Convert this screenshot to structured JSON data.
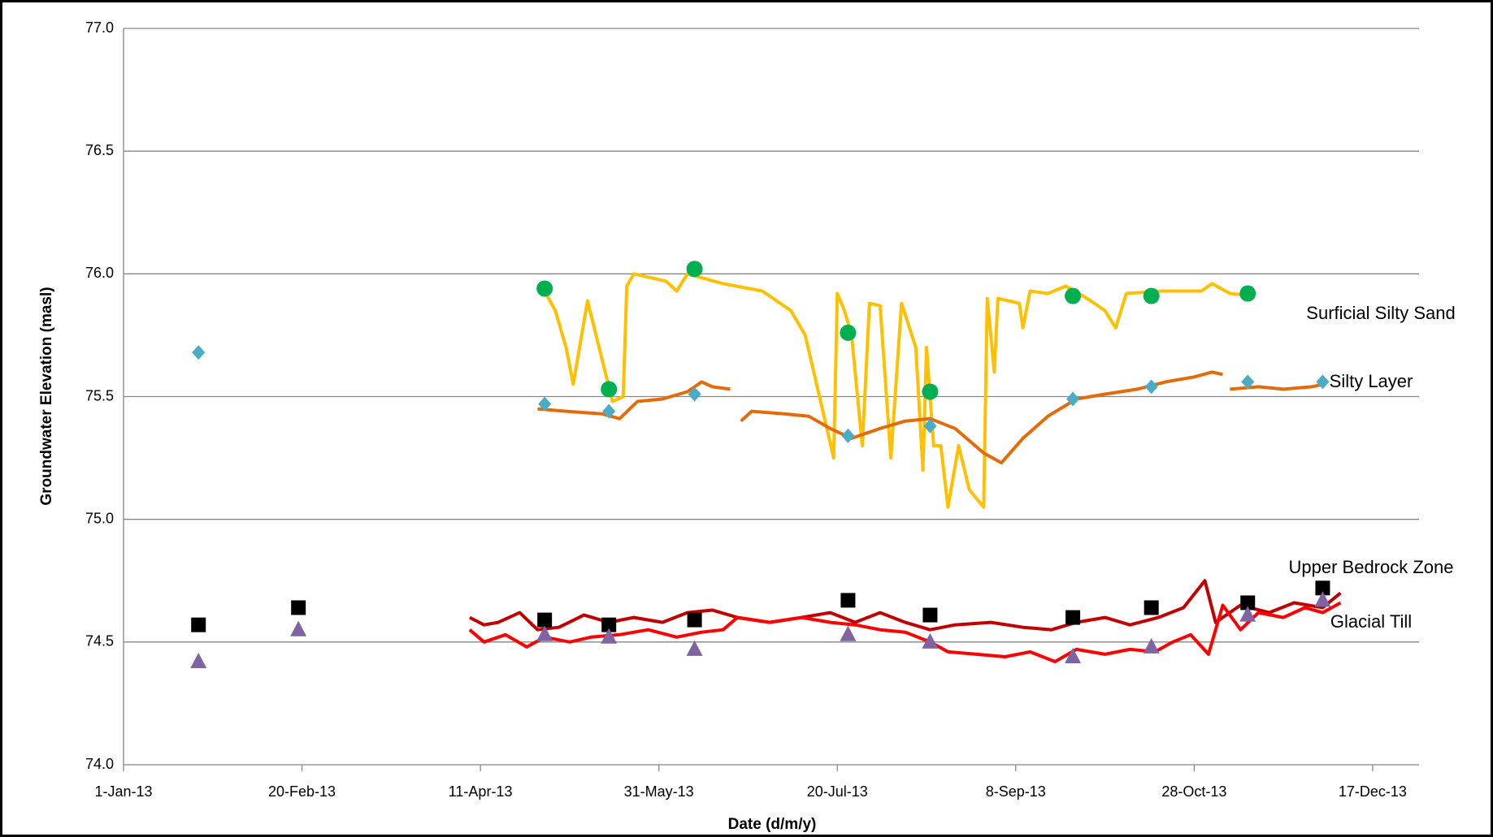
{
  "chart_data": {
    "type": "line",
    "x_label": "Date (d/m/y)",
    "y_label": "Groundwater Elevation (masl)",
    "xlim": [
      "1-Jan-13",
      "30-Dec-13"
    ],
    "xticks": [
      "1-Jan-13",
      "20-Feb-13",
      "11-Apr-13",
      "31-May-13",
      "20-Jul-13",
      "8-Sep-13",
      "28-Oct-13",
      "17-Dec-13"
    ],
    "ylim": [
      74.0,
      77.0
    ],
    "yticks": [
      {
        "value": 74.0,
        "label": "74.0"
      },
      {
        "value": 74.5,
        "label": "74.5"
      },
      {
        "value": 75.0,
        "label": "75.0"
      },
      {
        "value": 75.5,
        "label": "75.5"
      },
      {
        "value": 76.0,
        "label": "76.0"
      },
      {
        "value": 76.5,
        "label": "76.5"
      },
      {
        "value": 77.0,
        "label": "77.0"
      }
    ],
    "grid": true,
    "series": [
      {
        "name": "Surficial Silty Sand",
        "color": "#ffc000",
        "marker": "none",
        "x": [
          "27-Apr-13",
          "29-Apr-13",
          "2-May-13",
          "5-May-13",
          "7-May-13",
          "11-May-13",
          "18-May-13",
          "21-May-13",
          "22-May-13",
          "24-May-13",
          "2-Jun-13",
          "5-Jun-13",
          "8-Jun-13",
          "18-Jun-13",
          "29-Jun-13",
          "7-Jul-13",
          "11-Jul-13",
          "15-Jul-13",
          "19-Jul-13",
          "20-Jul-13",
          "22-Jul-13",
          "24-Jul-13",
          "27-Jul-13",
          "29-Jul-13",
          "1-Aug-13",
          "4-Aug-13",
          "7-Aug-13",
          "11-Aug-13",
          "13-Aug-13",
          "14-Aug-13",
          "16-Aug-13",
          "18-Aug-13",
          "20-Aug-13",
          "23-Aug-13",
          "26-Aug-13",
          "30-Aug-13",
          "31-Aug-13",
          "2-Sep-13",
          "3-Sep-13",
          "9-Sep-13",
          "10-Sep-13",
          "12-Sep-13",
          "17-Sep-13",
          "22-Sep-13",
          "28-Sep-13",
          "3-Oct-13",
          "6-Oct-13",
          "9-Oct-13",
          "19-Oct-13",
          "30-Oct-13",
          "2-Nov-13",
          "7-Nov-13",
          "14-Nov-13"
        ],
        "values": [
          75.95,
          75.93,
          75.85,
          75.7,
          75.55,
          75.89,
          75.48,
          75.5,
          75.95,
          76.0,
          75.97,
          75.93,
          76.0,
          75.96,
          75.93,
          75.85,
          75.75,
          75.5,
          75.25,
          75.92,
          75.85,
          75.75,
          75.3,
          75.88,
          75.87,
          75.25,
          75.88,
          75.7,
          75.2,
          75.7,
          75.3,
          75.3,
          75.05,
          75.3,
          75.12,
          75.05,
          75.9,
          75.6,
          75.9,
          75.88,
          75.78,
          75.93,
          75.92,
          75.95,
          75.9,
          75.85,
          75.78,
          75.92,
          75.93,
          75.93,
          75.96,
          75.92,
          75.91
        ]
      },
      {
        "name": "Silty Layer",
        "color": "#e36c09",
        "marker": "none",
        "x": [
          "27-Apr-13",
          "5-May-13",
          "15-May-13",
          "20-May-13",
          "25-May-13",
          "1-Jun-13",
          "8-Jun-13",
          "12-Jun-13",
          "15-Jun-13",
          "20-Jun-13",
          null,
          "23-Jun-13",
          "26-Jun-13",
          "5-Jul-13",
          "12-Jul-13",
          "18-Jul-13",
          "24-Jul-13",
          "1-Aug-13",
          "8-Aug-13",
          "15-Aug-13",
          "22-Aug-13",
          "30-Aug-13",
          "4-Sep-13",
          "10-Sep-13",
          "17-Sep-13",
          "25-Sep-13",
          "3-Oct-13",
          "12-Oct-13",
          "20-Oct-13",
          "28-Oct-13",
          "2-Nov-13",
          "5-Nov-13",
          null,
          "7-Nov-13",
          "15-Nov-13",
          "22-Nov-13",
          "30-Nov-13",
          "3-Dec-13"
        ],
        "values": [
          75.45,
          75.44,
          75.43,
          75.41,
          75.48,
          75.49,
          75.52,
          75.56,
          75.54,
          75.53,
          null,
          75.4,
          75.44,
          75.43,
          75.42,
          75.37,
          75.33,
          75.37,
          75.4,
          75.41,
          75.37,
          75.27,
          75.23,
          75.33,
          75.42,
          75.49,
          75.51,
          75.53,
          75.56,
          75.58,
          75.6,
          75.59,
          null,
          75.53,
          75.54,
          75.53,
          75.54,
          75.55
        ]
      },
      {
        "name": "Upper Bedrock Zone",
        "color": "#c00000",
        "marker": "none",
        "x": [
          "8-Apr-13",
          "12-Apr-13",
          "16-Apr-13",
          "22-Apr-13",
          "27-Apr-13",
          "3-May-13",
          "10-May-13",
          "17-May-13",
          "24-May-13",
          "1-Jun-13",
          "8-Jun-13",
          "15-Jun-13",
          "22-Jun-13",
          "1-Jul-13",
          "10-Jul-13",
          "18-Jul-13",
          "25-Jul-13",
          "1-Aug-13",
          "8-Aug-13",
          "15-Aug-13",
          "22-Aug-13",
          "1-Sep-13",
          "10-Sep-13",
          "18-Sep-13",
          "25-Sep-13",
          "3-Oct-13",
          "10-Oct-13",
          "18-Oct-13",
          "25-Oct-13",
          "31-Oct-13",
          "3-Nov-13",
          "10-Nov-13",
          "18-Nov-13",
          "25-Nov-13",
          "3-Dec-13",
          "8-Dec-13"
        ],
        "values": [
          74.6,
          74.57,
          74.58,
          74.62,
          74.55,
          74.56,
          74.61,
          74.58,
          74.6,
          74.58,
          74.62,
          74.63,
          74.6,
          74.58,
          74.6,
          74.62,
          74.58,
          74.62,
          74.58,
          74.55,
          74.57,
          74.58,
          74.56,
          74.55,
          74.58,
          74.6,
          74.57,
          74.6,
          74.64,
          74.75,
          74.58,
          74.65,
          74.62,
          74.66,
          74.64,
          74.7
        ]
      },
      {
        "name": "Glacial Till",
        "color": "#ff0000",
        "marker": "none",
        "x": [
          "8-Apr-13",
          "12-Apr-13",
          "18-Apr-13",
          "24-Apr-13",
          "29-Apr-13",
          "6-May-13",
          "12-May-13",
          "20-May-13",
          "28-May-13",
          "5-Jun-13",
          "12-Jun-13",
          "18-Jun-13",
          "22-Jun-13",
          "1-Jul-13",
          "10-Jul-13",
          "18-Jul-13",
          "25-Jul-13",
          "1-Aug-13",
          "8-Aug-13",
          "15-Aug-13",
          "20-Aug-13",
          "28-Aug-13",
          "5-Sep-13",
          "12-Sep-13",
          "19-Sep-13",
          "25-Sep-13",
          "3-Oct-13",
          "10-Oct-13",
          "17-Oct-13",
          "22-Oct-13",
          "27-Oct-13",
          "1-Nov-13",
          "5-Nov-13",
          "10-Nov-13",
          "15-Nov-13",
          "22-Nov-13",
          "28-Nov-13",
          "3-Dec-13",
          "8-Dec-13"
        ],
        "values": [
          74.55,
          74.5,
          74.53,
          74.48,
          74.52,
          74.5,
          74.52,
          74.53,
          74.55,
          74.52,
          74.54,
          74.55,
          74.6,
          74.58,
          74.6,
          74.58,
          74.57,
          74.55,
          74.54,
          74.5,
          74.46,
          74.45,
          74.44,
          74.46,
          74.42,
          74.47,
          74.45,
          74.47,
          74.46,
          74.5,
          74.53,
          74.45,
          74.65,
          74.55,
          74.62,
          74.6,
          74.64,
          74.62,
          74.66
        ]
      },
      {
        "color": "#00b050",
        "marker": "circle",
        "x": [
          "29-Apr-13",
          "17-May-13",
          "10-Jun-13",
          "23-Jul-13",
          "15-Aug-13",
          "24-Sep-13",
          "16-Oct-13",
          "12-Nov-13"
        ],
        "values": [
          75.94,
          75.53,
          76.02,
          75.76,
          75.52,
          75.91,
          75.91,
          75.92
        ]
      },
      {
        "color": "#4bacc6",
        "marker": "diamond",
        "x": [
          "22-Jan-13",
          "29-Apr-13",
          "17-May-13",
          "10-Jun-13",
          "23-Jul-13",
          "15-Aug-13",
          "24-Sep-13",
          "16-Oct-13",
          "12-Nov-13",
          "3-Dec-13"
        ],
        "values": [
          75.68,
          75.47,
          75.44,
          75.51,
          75.34,
          75.38,
          75.49,
          75.54,
          75.56,
          75.56
        ]
      },
      {
        "color": "#000000",
        "marker": "square",
        "x": [
          "22-Jan-13",
          "19-Feb-13",
          "29-Apr-13",
          "17-May-13",
          "10-Jun-13",
          "23-Jul-13",
          "15-Aug-13",
          "24-Sep-13",
          "16-Oct-13",
          "12-Nov-13",
          "3-Dec-13"
        ],
        "values": [
          74.57,
          74.64,
          74.59,
          74.57,
          74.59,
          74.67,
          74.61,
          74.6,
          74.64,
          74.66,
          74.72
        ]
      },
      {
        "color": "#8064a2",
        "marker": "triangle",
        "x": [
          "22-Jan-13",
          "19-Feb-13",
          "29-Apr-13",
          "17-May-13",
          "10-Jun-13",
          "23-Jul-13",
          "15-Aug-13",
          "24-Sep-13",
          "16-Oct-13",
          "12-Nov-13",
          "3-Dec-13"
        ],
        "values": [
          74.42,
          74.55,
          74.53,
          74.52,
          74.47,
          74.53,
          74.5,
          74.44,
          74.48,
          74.61,
          74.67
        ]
      }
    ]
  }
}
